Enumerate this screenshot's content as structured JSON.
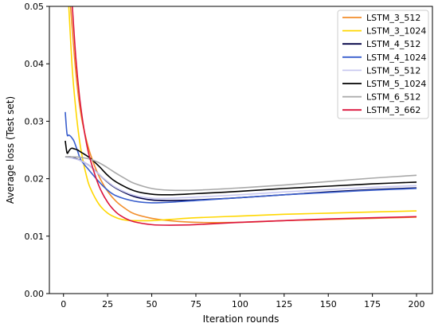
{
  "chart_data": {
    "type": "line",
    "title": "",
    "xlabel": "Iteration rounds",
    "ylabel": "Average loss (Test set)",
    "xlim": [
      -8,
      209
    ],
    "ylim": [
      0,
      0.05
    ],
    "xticks": [
      0,
      25,
      50,
      75,
      100,
      125,
      150,
      175,
      200
    ],
    "xtick_labels": [
      "0",
      "25",
      "50",
      "75",
      "100",
      "125",
      "150",
      "175",
      "200"
    ],
    "yticks": [
      0.0,
      0.01,
      0.02,
      0.03,
      0.04,
      0.05
    ],
    "ytick_labels": [
      "0.00",
      "0.01",
      "0.02",
      "0.03",
      "0.04",
      "0.05"
    ],
    "grid": false,
    "legend_position": "top-right",
    "series": [
      {
        "name": "LSTM_3_512",
        "color": "#f28e2b",
        "x": [
          4,
          6,
          8,
          10,
          12,
          15,
          20,
          25,
          30,
          35,
          40,
          50,
          60,
          75,
          100,
          125,
          150,
          175,
          200
        ],
        "y": [
          0.05,
          0.042,
          0.0355,
          0.031,
          0.028,
          0.0245,
          0.0205,
          0.0178,
          0.016,
          0.0148,
          0.0139,
          0.0131,
          0.0127,
          0.0124,
          0.0124,
          0.0127,
          0.0129,
          0.0131,
          0.0133
        ]
      },
      {
        "name": "LSTM_3_1024",
        "color": "#ffd700",
        "x": [
          3,
          5,
          7,
          9,
          11,
          13,
          15,
          20,
          25,
          30,
          35,
          40,
          50,
          60,
          75,
          100,
          125,
          150,
          175,
          200
        ],
        "y": [
          0.05,
          0.039,
          0.032,
          0.0268,
          0.0232,
          0.0205,
          0.0185,
          0.0156,
          0.014,
          0.0132,
          0.0128,
          0.0127,
          0.0127,
          0.0129,
          0.0132,
          0.0135,
          0.0138,
          0.014,
          0.0142,
          0.0144
        ]
      },
      {
        "name": "LSTM_4_512",
        "color": "#000044",
        "x": [
          1,
          2,
          4,
          6,
          10,
          15,
          20,
          25,
          30,
          40,
          50,
          60,
          75,
          100,
          125,
          150,
          175,
          200
        ],
        "y": [
          0.0238,
          0.0238,
          0.0238,
          0.0236,
          0.0231,
          0.0222,
          0.0208,
          0.0194,
          0.0183,
          0.0169,
          0.0163,
          0.0162,
          0.0163,
          0.0167,
          0.0172,
          0.0177,
          0.0181,
          0.0184
        ]
      },
      {
        "name": "LSTM_4_1024",
        "color": "#3a5fcd",
        "x": [
          1,
          2,
          3,
          4,
          5,
          6,
          8,
          10,
          15,
          20,
          25,
          30,
          40,
          50,
          60,
          75,
          100,
          125,
          150,
          175,
          200
        ],
        "y": [
          0.0316,
          0.0278,
          0.0276,
          0.0274,
          0.027,
          0.0265,
          0.0248,
          0.0232,
          0.0213,
          0.0195,
          0.018,
          0.017,
          0.0161,
          0.0158,
          0.0159,
          0.0162,
          0.0167,
          0.0172,
          0.0176,
          0.018,
          0.0183
        ]
      },
      {
        "name": "LSTM_5_512",
        "color": "#c8c8f0",
        "x": [
          1,
          3,
          6,
          10,
          15,
          20,
          25,
          30,
          40,
          50,
          60,
          75,
          100,
          125,
          150,
          175,
          200
        ],
        "y": [
          0.0238,
          0.0237,
          0.0235,
          0.0231,
          0.0222,
          0.0208,
          0.0195,
          0.0184,
          0.0171,
          0.0166,
          0.0166,
          0.0168,
          0.0172,
          0.0177,
          0.0181,
          0.0185,
          0.0188
        ]
      },
      {
        "name": "LSTM_5_1024",
        "color": "#000000",
        "x": [
          1,
          2,
          3,
          4,
          5,
          6,
          8,
          10,
          15,
          20,
          25,
          30,
          40,
          50,
          60,
          75,
          100,
          125,
          150,
          175,
          200
        ],
        "y": [
          0.0266,
          0.0245,
          0.0248,
          0.0252,
          0.0253,
          0.0252,
          0.025,
          0.0246,
          0.0236,
          0.0222,
          0.0206,
          0.0194,
          0.0179,
          0.0173,
          0.0172,
          0.0174,
          0.0178,
          0.0183,
          0.0187,
          0.0191,
          0.0194
        ]
      },
      {
        "name": "LSTM_6_512",
        "color": "#a8a8a8",
        "x": [
          1,
          5,
          10,
          15,
          20,
          25,
          30,
          35,
          40,
          50,
          60,
          75,
          100,
          125,
          150,
          175,
          200
        ],
        "y": [
          0.0238,
          0.0238,
          0.0237,
          0.0234,
          0.0228,
          0.0219,
          0.0209,
          0.02,
          0.0192,
          0.0183,
          0.018,
          0.018,
          0.0184,
          0.0189,
          0.0195,
          0.0201,
          0.0206
        ]
      },
      {
        "name": "LSTM_3_662",
        "color": "#dc143c",
        "x": [
          5,
          7,
          9,
          11,
          13,
          15,
          20,
          25,
          30,
          35,
          40,
          50,
          60,
          75,
          100,
          125,
          150,
          175,
          200
        ],
        "y": [
          0.05,
          0.041,
          0.0345,
          0.0298,
          0.0262,
          0.0235,
          0.0188,
          0.0159,
          0.0141,
          0.0131,
          0.0125,
          0.012,
          0.0119,
          0.012,
          0.0124,
          0.0127,
          0.013,
          0.0132,
          0.0134
        ]
      }
    ]
  }
}
